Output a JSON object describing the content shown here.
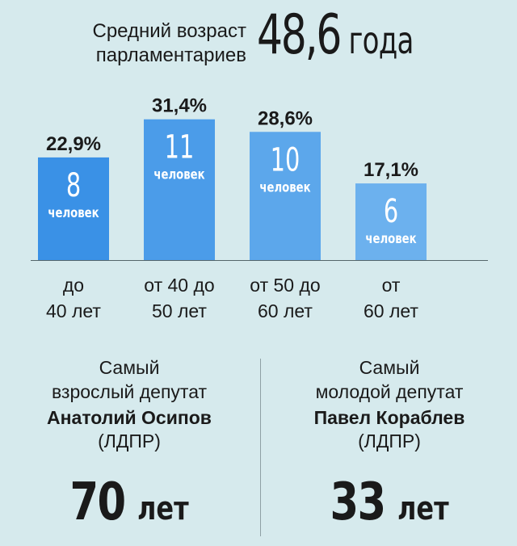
{
  "header": {
    "label_line1": "Средний возраст",
    "label_line2": "парламентариев",
    "value": "48,6",
    "unit": "года"
  },
  "chart_data": {
    "type": "bar",
    "title": "",
    "ylabel": "",
    "xlabel": "",
    "ylim": [
      0,
      35
    ],
    "colors": [
      "#3a91e6",
      "#4b9ce9",
      "#5ca7eb",
      "#6cb1ee"
    ],
    "bars": [
      {
        "category_line1": "до",
        "category_line2": "40 лет",
        "percent": 22.9,
        "percent_label": "22,9%",
        "count": "8",
        "count_unit": "человек"
      },
      {
        "category_line1": "от 40 до",
        "category_line2": "50 лет",
        "percent": 31.4,
        "percent_label": "31,4%",
        "count": "11",
        "count_unit": "человек"
      },
      {
        "category_line1": "от 50 до",
        "category_line2": "60 лет",
        "percent": 28.6,
        "percent_label": "28,6%",
        "count": "10",
        "count_unit": "человек"
      },
      {
        "category_line1": "от",
        "category_line2": "60 лет",
        "percent": 17.1,
        "percent_label": "17,1%",
        "count": "6",
        "count_unit": "человек"
      }
    ]
  },
  "oldest": {
    "label_line1": "Самый",
    "label_line2": "взрослый депутат",
    "name": "Анатолий Осипов",
    "party": "(ЛДПР)",
    "age": "70",
    "age_unit": "лет"
  },
  "youngest": {
    "label_line1": "Самый",
    "label_line2": "молодой депутат",
    "name": "Павел Кораблев",
    "party": "(ЛДПР)",
    "age": "33",
    "age_unit": "лет"
  }
}
